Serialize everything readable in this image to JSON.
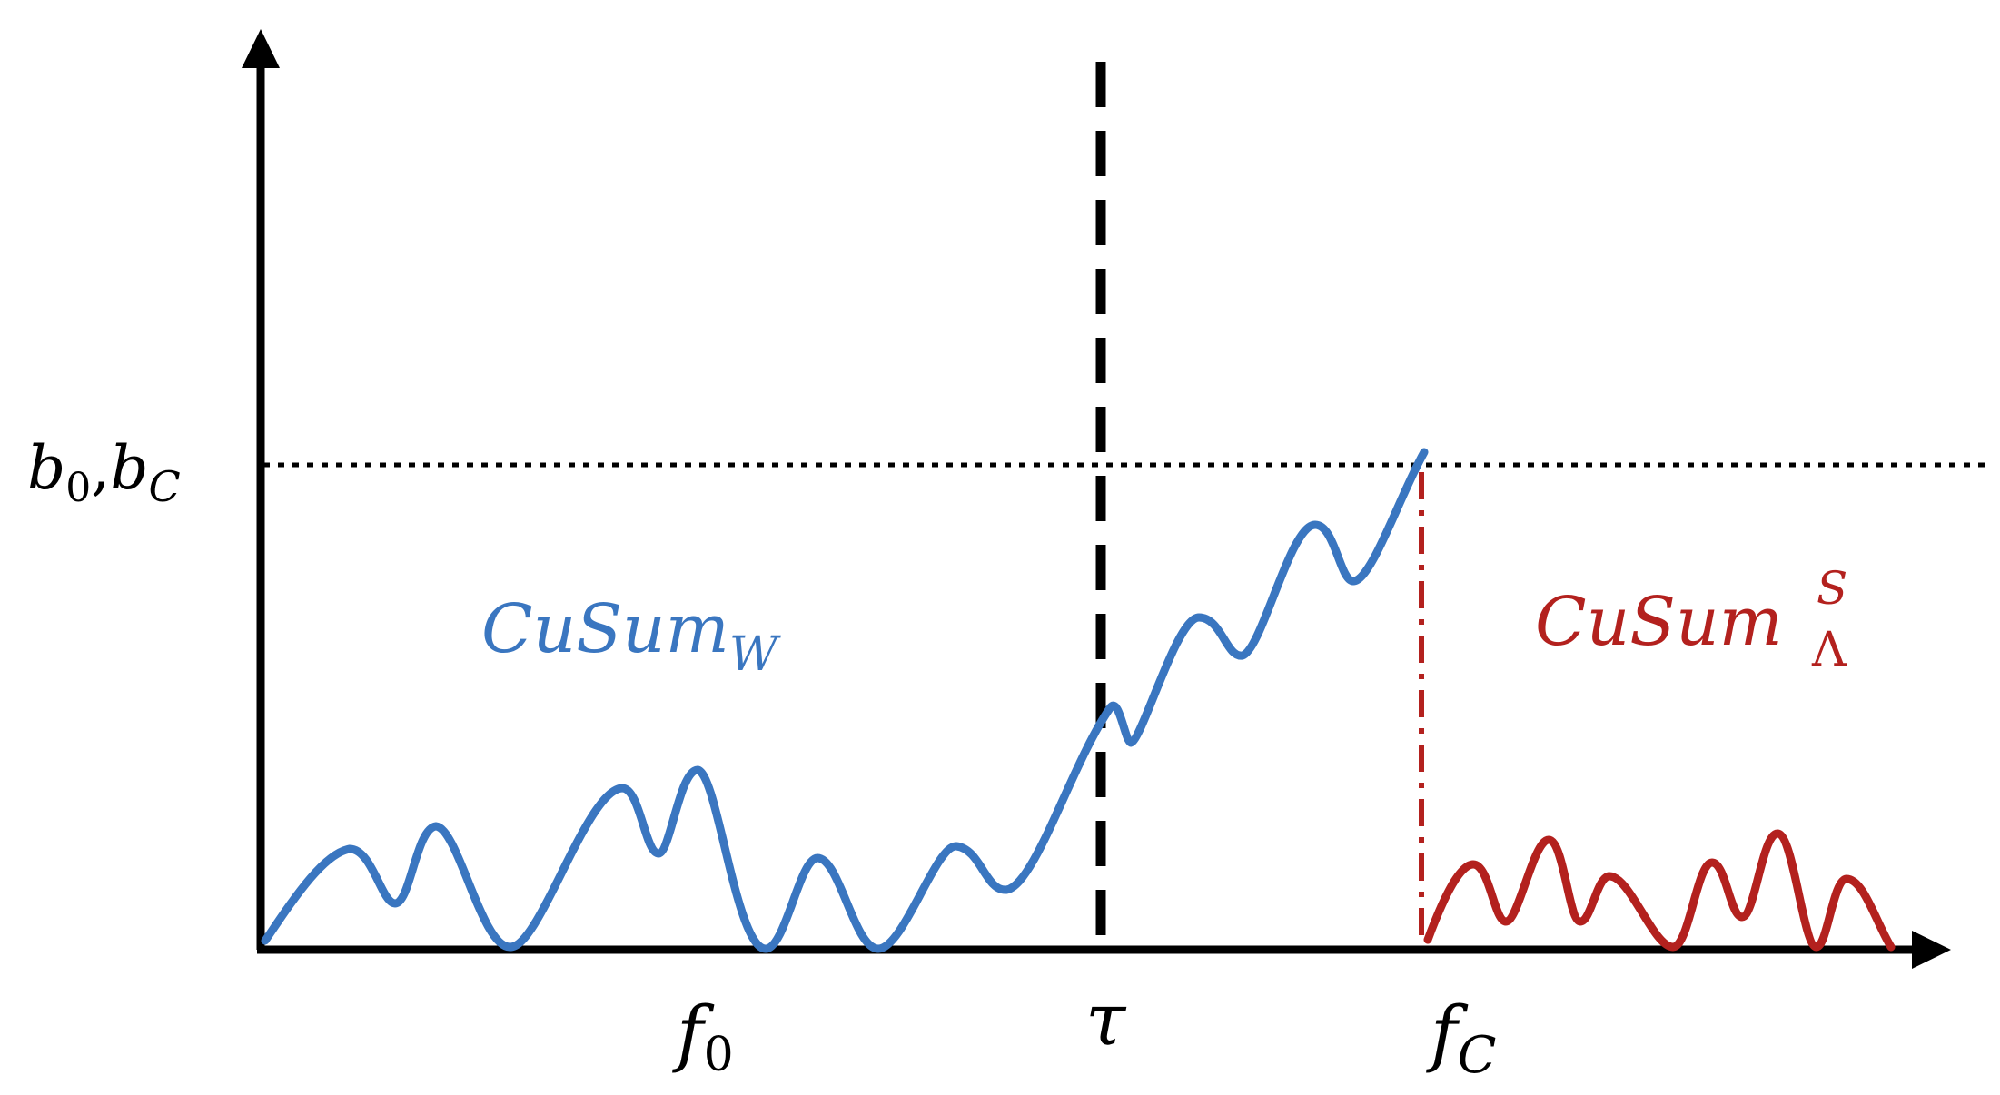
{
  "labels": {
    "y_threshold": {
      "base1": "b",
      "sub1": "0",
      "sep": ",",
      "base2": "b",
      "sub2": "C"
    },
    "cusum_w": {
      "base": "CuSum",
      "sub": "W"
    },
    "cusum_lambda": {
      "base": "CuSum",
      "sup": "S",
      "sub": "Λ"
    },
    "x_f0": {
      "base": "f",
      "sub": "0"
    },
    "x_tau": {
      "base": "τ"
    },
    "x_fc": {
      "base": "f",
      "sub": "C"
    }
  },
  "colors": {
    "axis": "#000000",
    "blue_curve": "#3a76c0",
    "red_curve": "#b3211e",
    "threshold_line": "#000000",
    "change_line": "#000000"
  },
  "icons": {
    "y_axis_arrow": "arrow-up",
    "x_axis_arrow": "arrow-right"
  }
}
